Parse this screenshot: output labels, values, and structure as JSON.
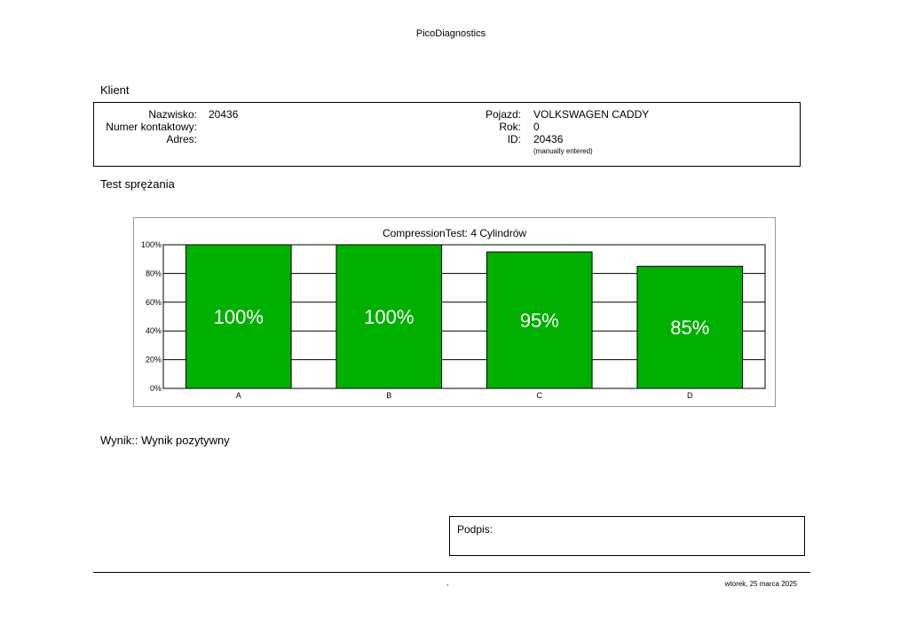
{
  "app_title": "PicoDiagnostics",
  "client_section": {
    "title": "Klient",
    "surname_label": "Nazwisko:",
    "surname_value": "20436",
    "contact_label": "Numer kontaktowy:",
    "contact_value": "",
    "address_label": "Adres:",
    "address_value": "",
    "vehicle_label": "Pojazd:",
    "vehicle_value": "VOLKSWAGEN CADDY",
    "year_label": "Rok:",
    "year_value": "0",
    "id_label": "ID:",
    "id_value": "20436",
    "id_note": "(manually entered)"
  },
  "test_section": {
    "title": "Test sprężania"
  },
  "chart_data": {
    "type": "bar",
    "title": "CompressionTest: 4 Cylindrów",
    "categories": [
      "A",
      "B",
      "C",
      "D"
    ],
    "values": [
      100,
      100,
      95,
      85
    ],
    "value_labels": [
      "100%",
      "100%",
      "95%",
      "85%"
    ],
    "yticks": [
      "0%",
      "20%",
      "40%",
      "60%",
      "80%",
      "100%"
    ],
    "ylim": [
      0,
      100
    ],
    "grid": true,
    "bar_color": "#00b000"
  },
  "result": {
    "text": "Wynik:: Wynik pozytywny"
  },
  "signature": {
    "label": "Podpis:"
  },
  "footer": {
    "center": "-",
    "date": "wtorek, 25 marca 2025"
  }
}
